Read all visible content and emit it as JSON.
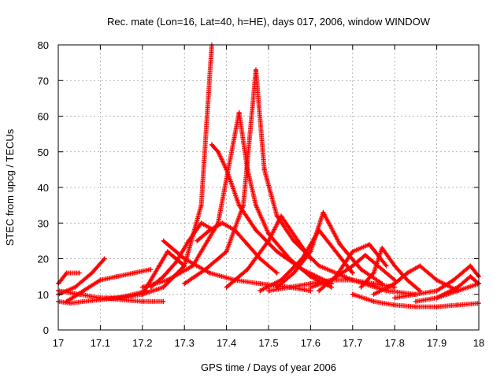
{
  "chart_data": {
    "type": "scatter",
    "title": "Rec. mate (Lon=16, Lat=40, h=HE), days 017, 2006, window WINDOW",
    "xlabel": "GPS time / Days of year 2006",
    "ylabel": "STEC from upcg / TECUs",
    "xlim": [
      17,
      18
    ],
    "ylim": [
      0,
      80
    ],
    "xticks": [
      "17",
      "17.1",
      "17.2",
      "17.3",
      "17.4",
      "17.5",
      "17.6",
      "17.7",
      "17.8",
      "17.9",
      "18"
    ],
    "yticks": [
      "0",
      "10",
      "20",
      "30",
      "40",
      "50",
      "60",
      "70",
      "80"
    ],
    "grid": true,
    "legend": "none",
    "marker": "+",
    "colors": {
      "series": "#ff0000",
      "axis": "#000000",
      "grid": "#a0a0a0"
    },
    "series": [
      {
        "x": [
          17.0,
          17.03,
          17.06,
          17.1,
          17.14,
          17.18,
          17.21
        ],
        "y": [
          8,
          7.5,
          8,
          8.5,
          9,
          10,
          11
        ]
      },
      {
        "x": [
          17.0,
          17.02,
          17.05
        ],
        "y": [
          13,
          16,
          16
        ]
      },
      {
        "x": [
          17.0,
          17.04,
          17.08,
          17.11
        ],
        "y": [
          10,
          12,
          16,
          20
        ]
      },
      {
        "x": [
          17.0,
          17.05,
          17.1,
          17.15,
          17.2,
          17.25
        ],
        "y": [
          11,
          10,
          9,
          8.5,
          8,
          8
        ]
      },
      {
        "x": [
          17.02,
          17.06,
          17.1,
          17.14,
          17.18,
          17.22
        ],
        "y": [
          8,
          11,
          14,
          15,
          16,
          17
        ]
      },
      {
        "x": [
          17.1,
          17.15,
          17.2,
          17.25,
          17.3,
          17.34,
          17.365
        ],
        "y": [
          9,
          9,
          10,
          12,
          18,
          35,
          80
        ]
      },
      {
        "x": [
          17.365,
          17.38,
          17.4,
          17.43,
          17.47,
          17.52,
          17.58,
          17.65
        ],
        "y": [
          52,
          50,
          45,
          35,
          28,
          22,
          17,
          13
        ]
      },
      {
        "x": [
          17.2,
          17.26,
          17.32,
          17.38,
          17.43
        ],
        "y": [
          12,
          14,
          18,
          30,
          61
        ]
      },
      {
        "x": [
          17.43,
          17.45,
          17.47,
          17.5,
          17.55,
          17.6,
          17.65
        ],
        "y": [
          61,
          45,
          35,
          27,
          20,
          15,
          12
        ]
      },
      {
        "x": [
          17.3,
          17.35,
          17.4,
          17.44,
          17.47
        ],
        "y": [
          13,
          17,
          22,
          35,
          73
        ]
      },
      {
        "x": [
          17.47,
          17.49,
          17.52,
          17.56,
          17.62,
          17.7,
          17.78,
          17.85
        ],
        "y": [
          73,
          45,
          32,
          25,
          18,
          14,
          11,
          10
        ]
      },
      {
        "x": [
          17.25,
          17.3,
          17.36,
          17.42,
          17.48,
          17.55,
          17.6
        ],
        "y": [
          25,
          20,
          16,
          14,
          13,
          12,
          11
        ]
      },
      {
        "x": [
          17.33,
          17.36,
          17.39,
          17.42,
          17.45,
          17.48,
          17.52
        ],
        "y": [
          25,
          28,
          30,
          28,
          24,
          20,
          16
        ]
      },
      {
        "x": [
          17.4,
          17.45,
          17.5,
          17.53,
          17.57,
          17.6
        ],
        "y": [
          12,
          17,
          25,
          32,
          25,
          20
        ]
      },
      {
        "x": [
          17.48,
          17.53,
          17.58,
          17.62,
          17.66,
          17.7
        ],
        "y": [
          11,
          14,
          20,
          28,
          22,
          16
        ]
      },
      {
        "x": [
          17.52,
          17.56,
          17.6,
          17.63,
          17.67,
          17.72,
          17.77
        ],
        "y": [
          12,
          16,
          22,
          33,
          24,
          17,
          13
        ]
      },
      {
        "x": [
          17.5,
          17.55,
          17.6,
          17.65,
          17.7,
          17.75,
          17.8
        ],
        "y": [
          11,
          12,
          13,
          14,
          14,
          13,
          12
        ]
      },
      {
        "x": [
          17.6,
          17.65,
          17.7,
          17.73,
          17.76,
          17.8
        ],
        "y": [
          12,
          14,
          18,
          21,
          18,
          14
        ]
      },
      {
        "x": [
          17.62,
          17.66,
          17.7,
          17.74,
          17.78
        ],
        "y": [
          11,
          15,
          22,
          24,
          18
        ]
      },
      {
        "x": [
          17.72,
          17.75,
          17.77,
          17.8,
          17.83,
          17.86
        ],
        "y": [
          12,
          16,
          23,
          18,
          14,
          11
        ]
      },
      {
        "x": [
          17.7,
          17.75,
          17.8,
          17.85,
          17.9,
          17.95,
          18.0
        ],
        "y": [
          10,
          8,
          7,
          6.5,
          6.5,
          7,
          7.5
        ]
      },
      {
        "x": [
          17.75,
          17.8,
          17.83,
          17.86,
          17.9,
          17.95
        ],
        "y": [
          10,
          13,
          16,
          18,
          14,
          11
        ]
      },
      {
        "x": [
          17.8,
          17.85,
          17.9,
          17.94,
          17.98,
          18.0
        ],
        "y": [
          9,
          10,
          11,
          14,
          18,
          15
        ]
      },
      {
        "x": [
          17.85,
          17.9,
          17.95,
          18.0
        ],
        "y": [
          8,
          9,
          11,
          13
        ]
      },
      {
        "x": [
          17.9,
          17.95,
          17.98,
          18.0
        ],
        "y": [
          9,
          12,
          15,
          13
        ]
      },
      {
        "x": [
          17.2,
          17.22,
          17.24,
          17.26,
          17.28,
          17.3
        ],
        "y": [
          10,
          14,
          18,
          22,
          20,
          18
        ]
      },
      {
        "x": [
          17.22,
          17.25,
          17.28,
          17.31,
          17.34,
          17.37
        ],
        "y": [
          12,
          15,
          19,
          25,
          30,
          28
        ]
      }
    ]
  }
}
